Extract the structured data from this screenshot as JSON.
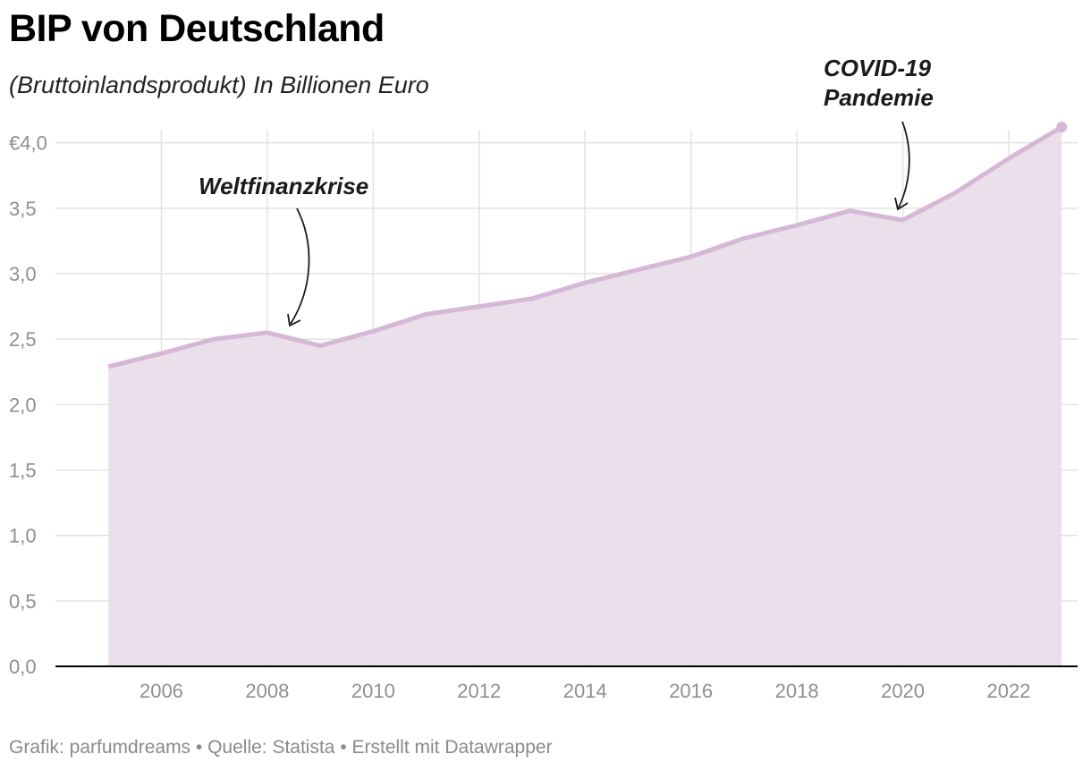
{
  "chart_data": {
    "type": "area",
    "title": "BIP von Deutschland",
    "subtitle": "(Bruttoinlandsprodukt) In Billionen Euro",
    "x": [
      2005,
      2006,
      2007,
      2008,
      2009,
      2010,
      2011,
      2012,
      2013,
      2014,
      2015,
      2016,
      2017,
      2018,
      2019,
      2020,
      2021,
      2022,
      2023
    ],
    "values": [
      2.29,
      2.39,
      2.5,
      2.55,
      2.45,
      2.56,
      2.69,
      2.75,
      2.81,
      2.93,
      3.03,
      3.13,
      3.27,
      3.37,
      3.48,
      3.41,
      3.62,
      3.88,
      4.12
    ],
    "xlim": [
      2004,
      2023.3
    ],
    "ylim": [
      0,
      4.1
    ],
    "y_ticks": [
      0,
      0.5,
      1.0,
      1.5,
      2.0,
      2.5,
      3.0,
      3.5,
      4.0
    ],
    "y_tick_labels": [
      "0,0",
      "0,5",
      "1,0",
      "1,5",
      "2,0",
      "2,5",
      "3,0",
      "3,5",
      "€4,0"
    ],
    "x_ticks": [
      2006,
      2008,
      2010,
      2012,
      2014,
      2016,
      2018,
      2020,
      2022
    ],
    "x_tick_labels": [
      "2006",
      "2008",
      "2010",
      "2012",
      "2014",
      "2016",
      "2018",
      "2020",
      "2022"
    ],
    "annotations": [
      {
        "lines": [
          "Weltfinanzkrise"
        ],
        "target_x": 2009
      },
      {
        "lines": [
          "COVID-19",
          "Pandemie"
        ],
        "target_x": 2020
      }
    ],
    "grid": true,
    "colors": {
      "line": "#d5b8d6",
      "fill": "#e8dbe9",
      "grid": "#e2e2e2",
      "axis": "#000000"
    }
  },
  "footer": "Grafik: parfumdreams • Quelle: Statista • Erstellt mit Datawrapper"
}
